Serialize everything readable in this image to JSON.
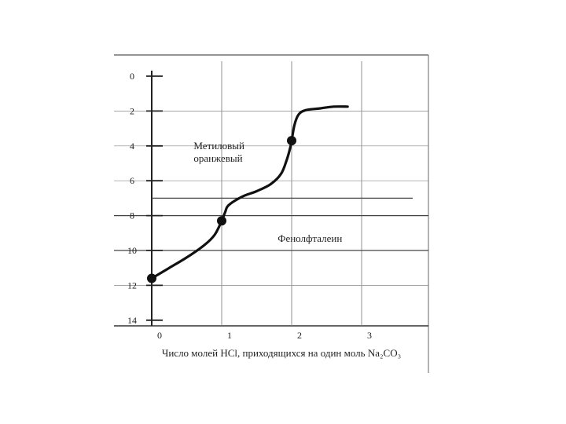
{
  "chart_data": {
    "type": "line",
    "title": "",
    "xlabel": "Число молей HCl, приходящихся на один моль Na₂CO₃",
    "ylabel": "",
    "xlim": [
      0,
      4
    ],
    "ylim": [
      0,
      14
    ],
    "y_inverted": true,
    "grid": true,
    "x_ticks": [
      "0",
      "1",
      "2",
      "3"
    ],
    "y_ticks": [
      "0",
      "2",
      "4",
      "6",
      "8",
      "10",
      "12",
      "14"
    ],
    "indicator_bands": [
      7.0,
      8.0,
      10.0
    ],
    "annotations": [
      {
        "text_lines": [
          "Метиловый",
          "оранжевый"
        ],
        "x": 0.6,
        "y": 4.2
      },
      {
        "text_lines": [
          "Фенолфталеин"
        ],
        "x": 1.8,
        "y": 9.5
      }
    ],
    "series": [
      {
        "x": [
          0.0,
          0.25,
          0.5,
          0.75,
          0.9,
          1.0,
          1.05,
          1.1,
          1.3,
          1.5,
          1.7,
          1.85,
          1.93,
          1.98,
          2.0,
          2.04,
          2.1,
          2.2,
          2.4,
          2.6,
          2.8
        ],
        "y": [
          11.6,
          11.0,
          10.4,
          9.7,
          9.1,
          8.3,
          7.8,
          7.4,
          6.9,
          6.6,
          6.2,
          5.6,
          4.8,
          4.1,
          3.7,
          2.8,
          2.2,
          1.95,
          1.85,
          1.75,
          1.75
        ]
      }
    ],
    "points": [
      {
        "x": 0,
        "y": 11.6
      },
      {
        "x": 1,
        "y": 8.3
      },
      {
        "x": 2,
        "y": 3.7
      }
    ]
  }
}
